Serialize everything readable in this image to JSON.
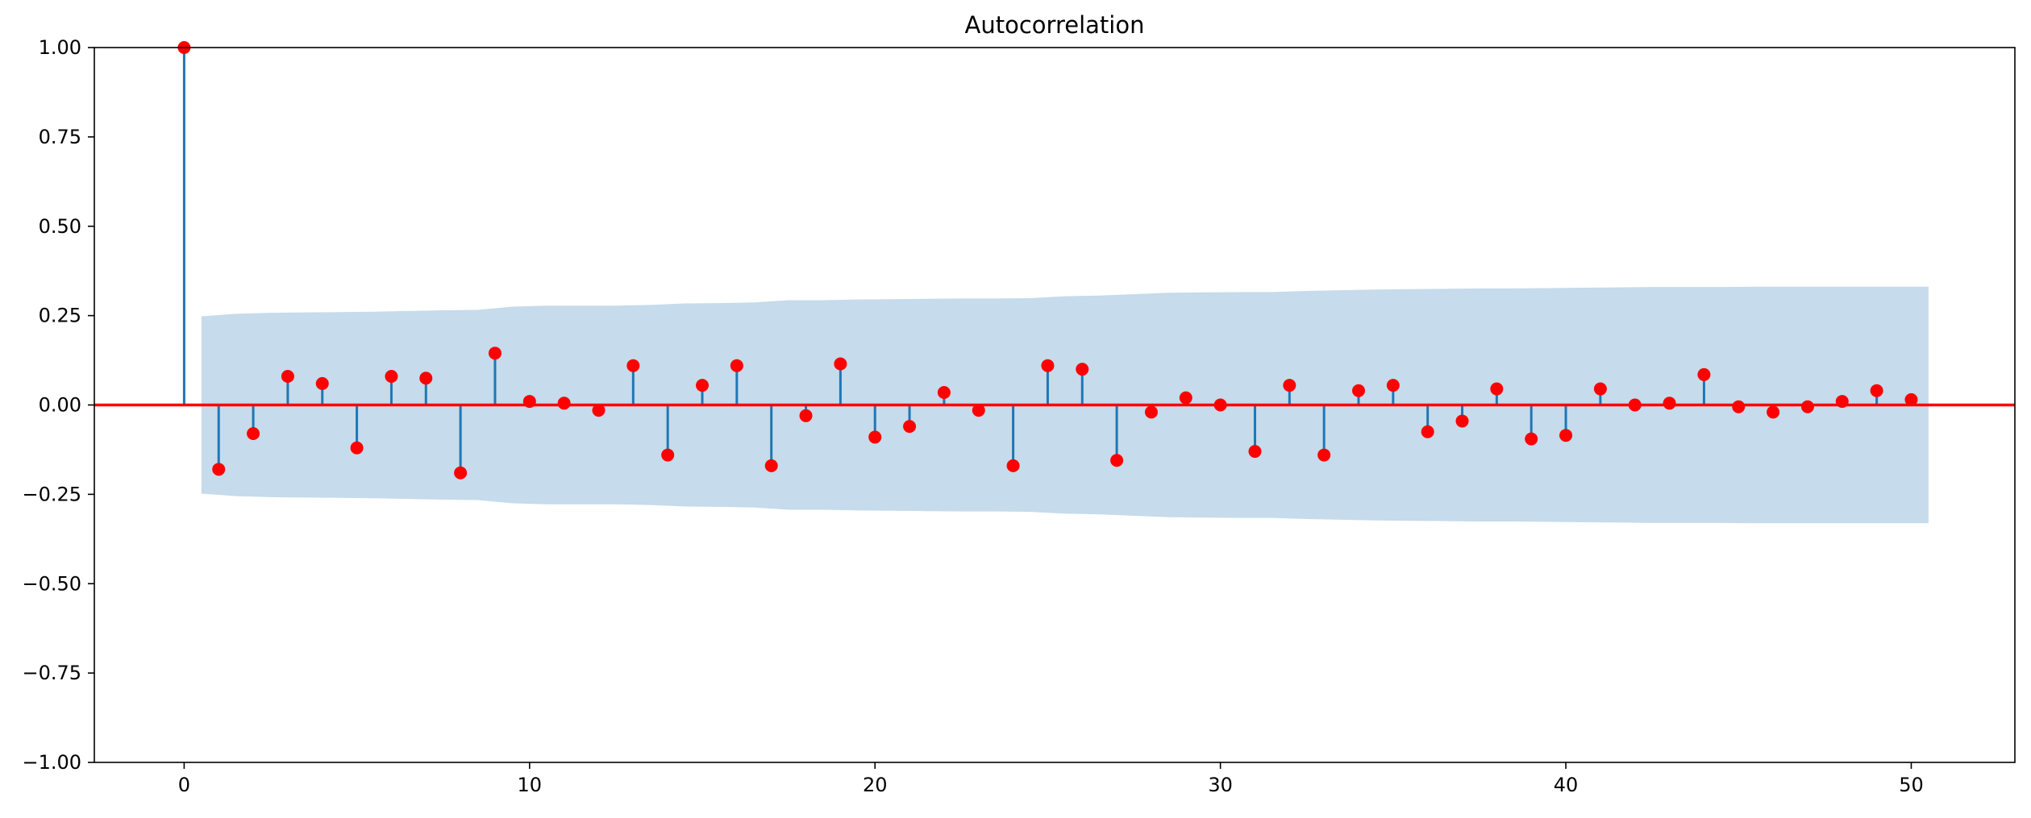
{
  "chart_data": {
    "type": "stem",
    "title": "Autocorrelation",
    "xlabel": "",
    "ylabel": "",
    "xlim": [
      -2.6,
      53.0
    ],
    "ylim": [
      -1.0,
      1.0
    ],
    "x_ticks": [
      0,
      10,
      20,
      30,
      40,
      50
    ],
    "x_tick_labels": [
      "0",
      "10",
      "20",
      "30",
      "40",
      "50"
    ],
    "y_ticks": [
      1.0,
      0.75,
      0.5,
      0.25,
      0.0,
      -0.25,
      -0.5,
      -0.75,
      -1.0
    ],
    "y_tick_labels": [
      "1.00",
      "0.75",
      "0.50",
      "0.25",
      "0.00",
      "−0.25",
      "−0.50",
      "−0.75",
      "−1.00"
    ],
    "grid": false,
    "legend": "none",
    "colors": {
      "stem": "#1f77b4",
      "marker": "#ff0000",
      "baseline": "#ff0000",
      "confidence_band": "#c6dbeb"
    },
    "lags": [
      0,
      1,
      2,
      3,
      4,
      5,
      6,
      7,
      8,
      9,
      10,
      11,
      12,
      13,
      14,
      15,
      16,
      17,
      18,
      19,
      20,
      21,
      22,
      23,
      24,
      25,
      26,
      27,
      28,
      29,
      30,
      31,
      32,
      33,
      34,
      35,
      36,
      37,
      38,
      39,
      40,
      41,
      42,
      43,
      44,
      45,
      46,
      47,
      48,
      49,
      50
    ],
    "acf": [
      1.0,
      -0.18,
      -0.08,
      0.08,
      0.06,
      -0.12,
      0.08,
      0.075,
      -0.19,
      0.145,
      0.01,
      0.005,
      -0.015,
      0.11,
      -0.14,
      0.055,
      0.11,
      -0.17,
      -0.03,
      0.115,
      -0.09,
      -0.06,
      0.035,
      -0.015,
      -0.17,
      0.11,
      0.1,
      -0.155,
      -0.02,
      0.02,
      0.0,
      -0.13,
      0.055,
      -0.14,
      0.04,
      0.055,
      -0.075,
      -0.045,
      0.045,
      -0.095,
      -0.085,
      0.045,
      0.0,
      0.005,
      0.085,
      -0.005,
      -0.02,
      -0.005,
      0.01,
      0.04,
      0.015
    ],
    "confidence_band": {
      "x_start": 0.5,
      "x_end": 50.5,
      "upper": [
        0.248,
        0.255,
        0.258,
        0.259,
        0.26,
        0.261,
        0.263,
        0.265,
        0.266,
        0.275,
        0.278,
        0.278,
        0.278,
        0.28,
        0.284,
        0.285,
        0.287,
        0.293,
        0.293,
        0.295,
        0.296,
        0.297,
        0.298,
        0.298,
        0.299,
        0.304,
        0.306,
        0.31,
        0.314,
        0.315,
        0.316,
        0.316,
        0.319,
        0.321,
        0.323,
        0.324,
        0.325,
        0.326,
        0.326,
        0.327,
        0.328,
        0.329,
        0.33,
        0.33,
        0.33,
        0.331,
        0.331,
        0.331,
        0.331,
        0.331,
        0.331
      ]
    }
  }
}
